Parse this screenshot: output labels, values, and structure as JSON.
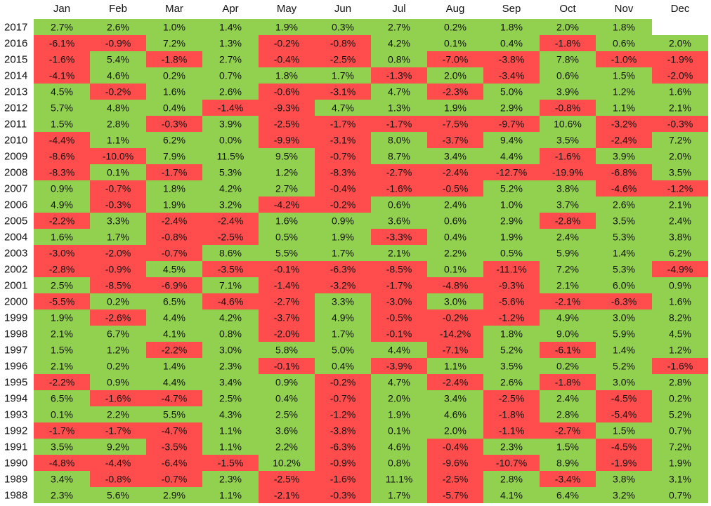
{
  "chart_data": {
    "type": "heatmap",
    "categories": [
      "Jan",
      "Feb",
      "Mar",
      "Apr",
      "May",
      "Jun",
      "Jul",
      "Aug",
      "Sep",
      "Oct",
      "Nov",
      "Dec"
    ],
    "colors": {
      "positive": "#92d050",
      "negative": "#ff4d4d",
      "text": "#111111"
    },
    "rows": [
      {
        "year": "2017",
        "values": [
          2.7,
          2.6,
          1.0,
          1.4,
          1.9,
          0.3,
          2.7,
          0.2,
          1.8,
          2.0,
          1.8,
          null
        ]
      },
      {
        "year": "2016",
        "values": [
          -6.1,
          -0.9,
          7.2,
          1.3,
          -0.2,
          -0.8,
          4.2,
          0.1,
          0.4,
          -1.8,
          0.6,
          2.0
        ]
      },
      {
        "year": "2015",
        "values": [
          -1.6,
          5.4,
          -1.8,
          2.7,
          -0.4,
          -2.5,
          0.8,
          -7.0,
          -3.8,
          7.8,
          -1.0,
          -1.9
        ]
      },
      {
        "year": "2014",
        "values": [
          -4.1,
          4.6,
          0.2,
          0.7,
          1.8,
          1.7,
          -1.3,
          2.0,
          -3.4,
          0.6,
          1.5,
          -2.0
        ]
      },
      {
        "year": "2013",
        "values": [
          4.5,
          -0.2,
          1.6,
          2.6,
          -0.6,
          -3.1,
          4.7,
          -2.3,
          5.0,
          3.9,
          1.2,
          1.6
        ]
      },
      {
        "year": "2012",
        "values": [
          5.7,
          4.8,
          0.4,
          -1.4,
          -9.3,
          4.7,
          1.3,
          1.9,
          2.9,
          -0.8,
          1.1,
          2.1
        ]
      },
      {
        "year": "2011",
        "values": [
          1.5,
          2.8,
          -0.3,
          3.9,
          -2.5,
          -1.7,
          -1.7,
          -7.5,
          -9.7,
          10.6,
          -3.2,
          -0.3
        ]
      },
      {
        "year": "2010",
        "values": [
          -4.4,
          1.1,
          6.2,
          0.0,
          -9.9,
          -3.1,
          8.0,
          -3.7,
          9.4,
          3.5,
          -2.4,
          7.2
        ]
      },
      {
        "year": "2009",
        "values": [
          -8.6,
          -10.0,
          7.9,
          11.5,
          9.5,
          -0.7,
          8.7,
          3.4,
          4.4,
          -1.6,
          3.9,
          2.0
        ]
      },
      {
        "year": "2008",
        "values": [
          -8.3,
          0.1,
          -1.7,
          5.3,
          1.2,
          -8.3,
          -2.7,
          -2.4,
          -12.7,
          -19.9,
          -6.8,
          3.5
        ]
      },
      {
        "year": "2007",
        "values": [
          0.9,
          -0.7,
          1.8,
          4.2,
          2.7,
          -0.4,
          -1.6,
          -0.5,
          5.2,
          3.8,
          -4.6,
          -1.2
        ]
      },
      {
        "year": "2006",
        "values": [
          4.9,
          -0.3,
          1.9,
          3.2,
          -4.2,
          -0.2,
          0.6,
          2.4,
          1.0,
          3.7,
          2.6,
          2.1
        ]
      },
      {
        "year": "2005",
        "values": [
          -2.2,
          3.3,
          -2.4,
          -2.4,
          1.6,
          0.9,
          3.6,
          0.6,
          2.9,
          -2.8,
          3.5,
          2.4
        ]
      },
      {
        "year": "2004",
        "values": [
          1.6,
          1.7,
          -0.8,
          -2.5,
          0.5,
          1.9,
          -3.3,
          0.4,
          1.9,
          2.4,
          5.3,
          3.8
        ]
      },
      {
        "year": "2003",
        "values": [
          -3.0,
          -2.0,
          -0.7,
          8.6,
          5.5,
          1.7,
          2.1,
          2.2,
          0.5,
          5.9,
          1.4,
          6.2
        ]
      },
      {
        "year": "2002",
        "values": [
          -2.8,
          -0.9,
          4.5,
          -3.5,
          -0.1,
          -6.3,
          -8.5,
          0.1,
          -11.1,
          7.2,
          5.3,
          -4.9
        ]
      },
      {
        "year": "2001",
        "values": [
          2.5,
          -8.5,
          -6.9,
          7.1,
          -1.4,
          -3.2,
          -1.7,
          -4.8,
          -9.3,
          2.1,
          6.0,
          0.9
        ]
      },
      {
        "year": "2000",
        "values": [
          -5.5,
          0.2,
          6.5,
          -4.6,
          -2.7,
          3.3,
          -3.0,
          3.0,
          -5.6,
          -2.1,
          -6.3,
          1.6
        ]
      },
      {
        "year": "1999",
        "values": [
          1.9,
          -2.6,
          4.4,
          4.2,
          -3.7,
          4.9,
          -0.5,
          -0.2,
          -1.2,
          4.9,
          3.0,
          8.2
        ]
      },
      {
        "year": "1998",
        "values": [
          2.1,
          6.7,
          4.1,
          0.8,
          -2.0,
          1.7,
          -0.1,
          -14.2,
          1.8,
          9.0,
          5.9,
          4.5
        ]
      },
      {
        "year": "1997",
        "values": [
          1.5,
          1.2,
          -2.2,
          3.0,
          5.8,
          5.0,
          4.4,
          -7.1,
          5.2,
          -6.1,
          1.4,
          1.2
        ]
      },
      {
        "year": "1996",
        "values": [
          2.1,
          0.2,
          1.4,
          2.3,
          -0.1,
          0.4,
          -3.9,
          1.1,
          3.5,
          0.2,
          5.2,
          -1.6
        ]
      },
      {
        "year": "1995",
        "values": [
          -2.2,
          0.9,
          4.4,
          3.4,
          0.9,
          -0.2,
          4.7,
          -2.4,
          2.6,
          -1.8,
          3.0,
          2.8
        ]
      },
      {
        "year": "1994",
        "values": [
          6.5,
          -1.6,
          -4.7,
          2.5,
          0.4,
          -0.7,
          2.0,
          3.4,
          -2.5,
          2.4,
          -4.5,
          0.2
        ]
      },
      {
        "year": "1993",
        "values": [
          0.1,
          2.2,
          5.5,
          4.3,
          2.5,
          -1.2,
          1.9,
          4.6,
          -1.8,
          2.8,
          -5.4,
          5.2
        ]
      },
      {
        "year": "1992",
        "values": [
          -1.7,
          -1.7,
          -4.7,
          1.1,
          3.6,
          -3.8,
          0.1,
          2.0,
          -1.1,
          -2.7,
          1.5,
          0.7
        ]
      },
      {
        "year": "1991",
        "values": [
          3.5,
          9.2,
          -3.5,
          1.1,
          2.2,
          -6.3,
          4.6,
          -0.4,
          2.3,
          1.5,
          -4.5,
          7.2
        ]
      },
      {
        "year": "1990",
        "values": [
          -4.8,
          -4.4,
          -6.4,
          -1.5,
          10.2,
          -0.9,
          0.8,
          -9.6,
          -10.7,
          8.9,
          -1.9,
          1.9
        ]
      },
      {
        "year": "1989",
        "values": [
          3.4,
          -0.8,
          -0.7,
          2.3,
          -2.5,
          -1.6,
          11.1,
          -2.5,
          2.8,
          -3.4,
          3.8,
          3.1
        ]
      },
      {
        "year": "1988",
        "values": [
          2.3,
          5.6,
          2.9,
          1.1,
          -2.1,
          -0.3,
          1.7,
          -5.7,
          4.1,
          6.4,
          3.2,
          0.7
        ]
      }
    ]
  }
}
